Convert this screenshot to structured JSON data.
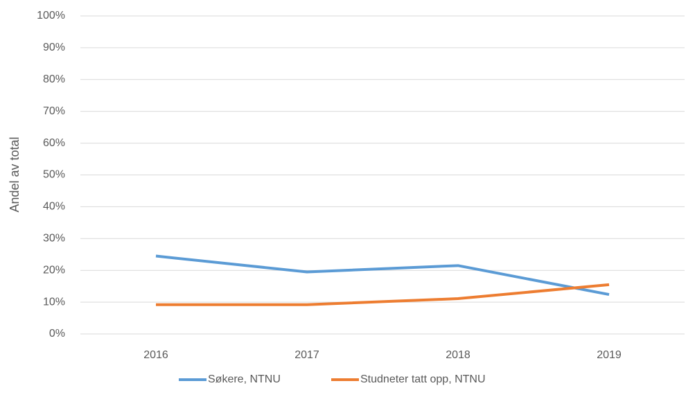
{
  "chart_data": {
    "type": "line",
    "y_label": "Andel av total",
    "categories": [
      "2016",
      "2017",
      "2018",
      "2019"
    ],
    "series": [
      {
        "name": "Søkere, NTNU",
        "color": "#5b9bd5",
        "values": [
          24.5,
          19.5,
          21.5,
          12.4
        ]
      },
      {
        "name": "Studneter tatt opp, NTNU",
        "color": "#ed7d31",
        "values": [
          9.2,
          9.2,
          11.1,
          15.5
        ]
      }
    ],
    "ylim": [
      0,
      100
    ],
    "yticks": [
      {
        "value": 0,
        "label": "0%"
      },
      {
        "value": 10,
        "label": "10%"
      },
      {
        "value": 20,
        "label": "20%"
      },
      {
        "value": 30,
        "label": "30%"
      },
      {
        "value": 40,
        "label": "40%"
      },
      {
        "value": 50,
        "label": "50%"
      },
      {
        "value": 60,
        "label": "60%"
      },
      {
        "value": 70,
        "label": "70%"
      },
      {
        "value": 80,
        "label": "80%"
      },
      {
        "value": 90,
        "label": "90%"
      },
      {
        "value": 100,
        "label": "100%"
      }
    ],
    "grid": true,
    "legend": "bottom"
  }
}
